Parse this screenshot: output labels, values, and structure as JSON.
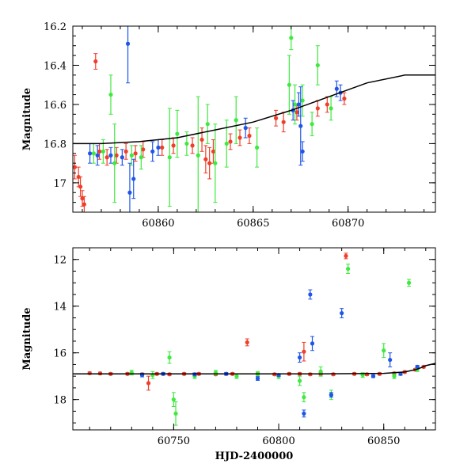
{
  "colors": {
    "red": "#ef3e2a",
    "green": "#3fe93f",
    "blue": "#1f55e8",
    "model": "#000000",
    "axes": "#000000"
  },
  "chart_data": [
    {
      "type": "scatter",
      "panel": "top",
      "title": "",
      "xlabel": "",
      "ylabel": "Magnitude",
      "xlim": [
        60855.5,
        60874.6
      ],
      "ylim": [
        17.15,
        16.2
      ],
      "y_inverted": true,
      "grid": false,
      "legend": "none",
      "xticks": [
        60860,
        60865,
        60870
      ],
      "yticks": [
        16.2,
        16.4,
        16.6,
        16.8,
        17
      ],
      "ytick_labels": [
        "16.2",
        "16.4",
        "16.6",
        "16.8",
        "17"
      ],
      "model_curve": {
        "x": [
          60855.5,
          60857,
          60859,
          60861,
          60863,
          60865,
          60867,
          60869,
          60871,
          60873,
          60874.6
        ],
        "y": [
          16.8,
          16.8,
          16.79,
          16.77,
          16.73,
          16.69,
          16.63,
          16.56,
          16.49,
          16.45,
          16.45
        ]
      },
      "series": [
        {
          "color": "red",
          "points": [
            {
              "x": 60855.6,
              "y": 16.92,
              "err": 0.06
            },
            {
              "x": 60855.8,
              "y": 16.97,
              "err": 0.05
            },
            {
              "x": 60855.9,
              "y": 17.02,
              "err": 0.05
            },
            {
              "x": 60856.0,
              "y": 17.08,
              "err": 0.04
            },
            {
              "x": 60856.1,
              "y": 17.11,
              "err": 0.04
            },
            {
              "x": 60856.7,
              "y": 16.38,
              "err": 0.04
            },
            {
              "x": 60856.9,
              "y": 16.84,
              "err": 0.04
            },
            {
              "x": 60857.3,
              "y": 16.87,
              "err": 0.04
            },
            {
              "x": 60857.8,
              "y": 16.86,
              "err": 0.04
            },
            {
              "x": 60858.3,
              "y": 16.84,
              "err": 0.04
            },
            {
              "x": 60858.8,
              "y": 16.85,
              "err": 0.04
            },
            {
              "x": 60859.2,
              "y": 16.83,
              "err": 0.04
            },
            {
              "x": 60860.2,
              "y": 16.82,
              "err": 0.04
            },
            {
              "x": 60860.8,
              "y": 16.81,
              "err": 0.04
            },
            {
              "x": 60861.8,
              "y": 16.81,
              "err": 0.04
            },
            {
              "x": 60862.3,
              "y": 16.78,
              "err": 0.06
            },
            {
              "x": 60862.5,
              "y": 16.88,
              "err": 0.07
            },
            {
              "x": 60862.7,
              "y": 16.9,
              "err": 0.08
            },
            {
              "x": 60862.9,
              "y": 16.84,
              "err": 0.06
            },
            {
              "x": 60863.8,
              "y": 16.79,
              "err": 0.04
            },
            {
              "x": 60864.3,
              "y": 16.77,
              "err": 0.04
            },
            {
              "x": 60864.8,
              "y": 16.76,
              "err": 0.04
            },
            {
              "x": 60866.2,
              "y": 16.67,
              "err": 0.04
            },
            {
              "x": 60866.6,
              "y": 16.69,
              "err": 0.05
            },
            {
              "x": 60867.3,
              "y": 16.64,
              "err": 0.04
            },
            {
              "x": 60868.4,
              "y": 16.62,
              "err": 0.04
            },
            {
              "x": 60868.9,
              "y": 16.6,
              "err": 0.04
            },
            {
              "x": 60869.8,
              "y": 16.57,
              "err": 0.03
            }
          ]
        },
        {
          "color": "green",
          "points": [
            {
              "x": 60856.6,
              "y": 16.85,
              "err": 0.05
            },
            {
              "x": 60857.1,
              "y": 16.84,
              "err": 0.06
            },
            {
              "x": 60857.5,
              "y": 16.55,
              "err": 0.1
            },
            {
              "x": 60857.7,
              "y": 16.9,
              "err": 0.2
            },
            {
              "x": 60858.6,
              "y": 16.86,
              "err": 0.05
            },
            {
              "x": 60859.1,
              "y": 16.87,
              "err": 0.06
            },
            {
              "x": 60860.6,
              "y": 16.87,
              "err": 0.25
            },
            {
              "x": 60861.0,
              "y": 16.75,
              "err": 0.12
            },
            {
              "x": 60861.5,
              "y": 16.8,
              "err": 0.06
            },
            {
              "x": 60862.1,
              "y": 16.86,
              "err": 0.3
            },
            {
              "x": 60862.6,
              "y": 16.7,
              "err": 0.1
            },
            {
              "x": 60863.0,
              "y": 16.9,
              "err": 0.2
            },
            {
              "x": 60863.6,
              "y": 16.8,
              "err": 0.12
            },
            {
              "x": 60864.1,
              "y": 16.68,
              "err": 0.12
            },
            {
              "x": 60865.2,
              "y": 16.82,
              "err": 0.1
            },
            {
              "x": 60866.9,
              "y": 16.5,
              "err": 0.15
            },
            {
              "x": 60867.0,
              "y": 16.26,
              "err": 0.06
            },
            {
              "x": 60867.2,
              "y": 16.6,
              "err": 0.1
            },
            {
              "x": 60867.6,
              "y": 16.58,
              "err": 0.08
            },
            {
              "x": 60868.1,
              "y": 16.7,
              "err": 0.06
            },
            {
              "x": 60868.4,
              "y": 16.4,
              "err": 0.1
            },
            {
              "x": 60869.1,
              "y": 16.62,
              "err": 0.06
            }
          ]
        },
        {
          "color": "blue",
          "points": [
            {
              "x": 60856.4,
              "y": 16.85,
              "err": 0.05
            },
            {
              "x": 60856.8,
              "y": 16.86,
              "err": 0.05
            },
            {
              "x": 60857.5,
              "y": 16.86,
              "err": 0.04
            },
            {
              "x": 60858.1,
              "y": 16.87,
              "err": 0.04
            },
            {
              "x": 60858.4,
              "y": 16.29,
              "err": 0.2
            },
            {
              "x": 60858.5,
              "y": 17.05,
              "err": 0.15
            },
            {
              "x": 60858.7,
              "y": 16.98,
              "err": 0.1
            },
            {
              "x": 60859.7,
              "y": 16.84,
              "err": 0.05
            },
            {
              "x": 60860.0,
              "y": 16.82,
              "err": 0.04
            },
            {
              "x": 60864.6,
              "y": 16.72,
              "err": 0.05
            },
            {
              "x": 60867.1,
              "y": 16.63,
              "err": 0.05
            },
            {
              "x": 60867.4,
              "y": 16.6,
              "err": 0.06
            },
            {
              "x": 60867.5,
              "y": 16.71,
              "err": 0.2
            },
            {
              "x": 60867.6,
              "y": 16.84,
              "err": 0.05
            },
            {
              "x": 60869.4,
              "y": 16.52,
              "err": 0.04
            },
            {
              "x": 60869.6,
              "y": 16.54,
              "err": 0.04
            }
          ]
        }
      ]
    },
    {
      "type": "scatter",
      "panel": "bottom",
      "title": "",
      "xlabel": "HJD-2400000",
      "ylabel": "Magnitude",
      "xlim": [
        60702,
        60874.6
      ],
      "ylim": [
        19.3,
        11.5
      ],
      "y_inverted": true,
      "grid": false,
      "legend": "none",
      "xticks": [
        60750,
        60800,
        60850
      ],
      "yticks": [
        12,
        14,
        16,
        18
      ],
      "ytick_labels": [
        "12",
        "14",
        "16",
        "18"
      ],
      "model_curve": {
        "x": [
          60702,
          60740,
          60780,
          60820,
          60850,
          60860,
          60866,
          60870,
          60874.6
        ],
        "y": [
          16.9,
          16.9,
          16.9,
          16.9,
          16.88,
          16.82,
          16.7,
          16.55,
          16.45
        ]
      },
      "series": [
        {
          "color": "red",
          "points": [
            {
              "x": 60710,
              "y": 16.87,
              "err": 0.05
            },
            {
              "x": 60715,
              "y": 16.88,
              "err": 0.05
            },
            {
              "x": 60720,
              "y": 16.9,
              "err": 0.05
            },
            {
              "x": 60728,
              "y": 16.9,
              "err": 0.05
            },
            {
              "x": 60735,
              "y": 16.92,
              "err": 0.05
            },
            {
              "x": 60738,
              "y": 17.3,
              "err": 0.3
            },
            {
              "x": 60742,
              "y": 16.9,
              "err": 0.05
            },
            {
              "x": 60748,
              "y": 16.92,
              "err": 0.05
            },
            {
              "x": 60755,
              "y": 16.9,
              "err": 0.05
            },
            {
              "x": 60762,
              "y": 16.9,
              "err": 0.05
            },
            {
              "x": 60770,
              "y": 16.92,
              "err": 0.05
            },
            {
              "x": 60778,
              "y": 16.9,
              "err": 0.05
            },
            {
              "x": 60785,
              "y": 15.55,
              "err": 0.15
            },
            {
              "x": 60790,
              "y": 16.9,
              "err": 0.05
            },
            {
              "x": 60798,
              "y": 16.92,
              "err": 0.05
            },
            {
              "x": 60805,
              "y": 16.9,
              "err": 0.05
            },
            {
              "x": 60810,
              "y": 16.9,
              "err": 0.05
            },
            {
              "x": 60812,
              "y": 15.95,
              "err": 0.4
            },
            {
              "x": 60815,
              "y": 16.92,
              "err": 0.05
            },
            {
              "x": 60820,
              "y": 16.9,
              "err": 0.05
            },
            {
              "x": 60826,
              "y": 16.92,
              "err": 0.05
            },
            {
              "x": 60832,
              "y": 11.85,
              "err": 0.12
            },
            {
              "x": 60836,
              "y": 16.9,
              "err": 0.05
            },
            {
              "x": 60842,
              "y": 16.92,
              "err": 0.05
            },
            {
              "x": 60848,
              "y": 16.9,
              "err": 0.05
            },
            {
              "x": 60855,
              "y": 16.88,
              "err": 0.05
            },
            {
              "x": 60860,
              "y": 16.82,
              "err": 0.05
            },
            {
              "x": 60865,
              "y": 16.72,
              "err": 0.05
            },
            {
              "x": 60869,
              "y": 16.6,
              "err": 0.05
            }
          ]
        },
        {
          "color": "green",
          "points": [
            {
              "x": 60730,
              "y": 16.85,
              "err": 0.1
            },
            {
              "x": 60740,
              "y": 16.95,
              "err": 0.15
            },
            {
              "x": 60748,
              "y": 16.2,
              "err": 0.25
            },
            {
              "x": 60750,
              "y": 18.0,
              "err": 0.3
            },
            {
              "x": 60751,
              "y": 18.6,
              "err": 0.5
            },
            {
              "x": 60760,
              "y": 17.0,
              "err": 0.1
            },
            {
              "x": 60770,
              "y": 16.85,
              "err": 0.1
            },
            {
              "x": 60780,
              "y": 17.0,
              "err": 0.1
            },
            {
              "x": 60790,
              "y": 16.9,
              "err": 0.1
            },
            {
              "x": 60800,
              "y": 17.0,
              "err": 0.1
            },
            {
              "x": 60810,
              "y": 17.2,
              "err": 0.2
            },
            {
              "x": 60812,
              "y": 17.9,
              "err": 0.2
            },
            {
              "x": 60820,
              "y": 16.8,
              "err": 0.2
            },
            {
              "x": 60825,
              "y": 17.8,
              "err": 0.2
            },
            {
              "x": 60833,
              "y": 12.4,
              "err": 0.2
            },
            {
              "x": 60840,
              "y": 16.95,
              "err": 0.1
            },
            {
              "x": 60850,
              "y": 15.9,
              "err": 0.3
            },
            {
              "x": 60855,
              "y": 17.0,
              "err": 0.1
            },
            {
              "x": 60862,
              "y": 13.0,
              "err": 0.15
            },
            {
              "x": 60866,
              "y": 16.7,
              "err": 0.1
            }
          ]
        },
        {
          "color": "blue",
          "points": [
            {
              "x": 60735,
              "y": 16.95,
              "err": 0.08
            },
            {
              "x": 60745,
              "y": 16.9,
              "err": 0.06
            },
            {
              "x": 60760,
              "y": 16.92,
              "err": 0.06
            },
            {
              "x": 60775,
              "y": 16.9,
              "err": 0.06
            },
            {
              "x": 60790,
              "y": 17.1,
              "err": 0.08
            },
            {
              "x": 60800,
              "y": 16.95,
              "err": 0.06
            },
            {
              "x": 60810,
              "y": 16.2,
              "err": 0.2
            },
            {
              "x": 60812,
              "y": 18.6,
              "err": 0.15
            },
            {
              "x": 60815,
              "y": 13.5,
              "err": 0.2
            },
            {
              "x": 60816,
              "y": 15.6,
              "err": 0.3
            },
            {
              "x": 60825,
              "y": 17.8,
              "err": 0.1
            },
            {
              "x": 60830,
              "y": 14.3,
              "err": 0.2
            },
            {
              "x": 60845,
              "y": 17.0,
              "err": 0.06
            },
            {
              "x": 60853,
              "y": 16.3,
              "err": 0.3
            },
            {
              "x": 60858,
              "y": 16.9,
              "err": 0.06
            },
            {
              "x": 60866,
              "y": 16.6,
              "err": 0.06
            }
          ]
        }
      ]
    }
  ]
}
